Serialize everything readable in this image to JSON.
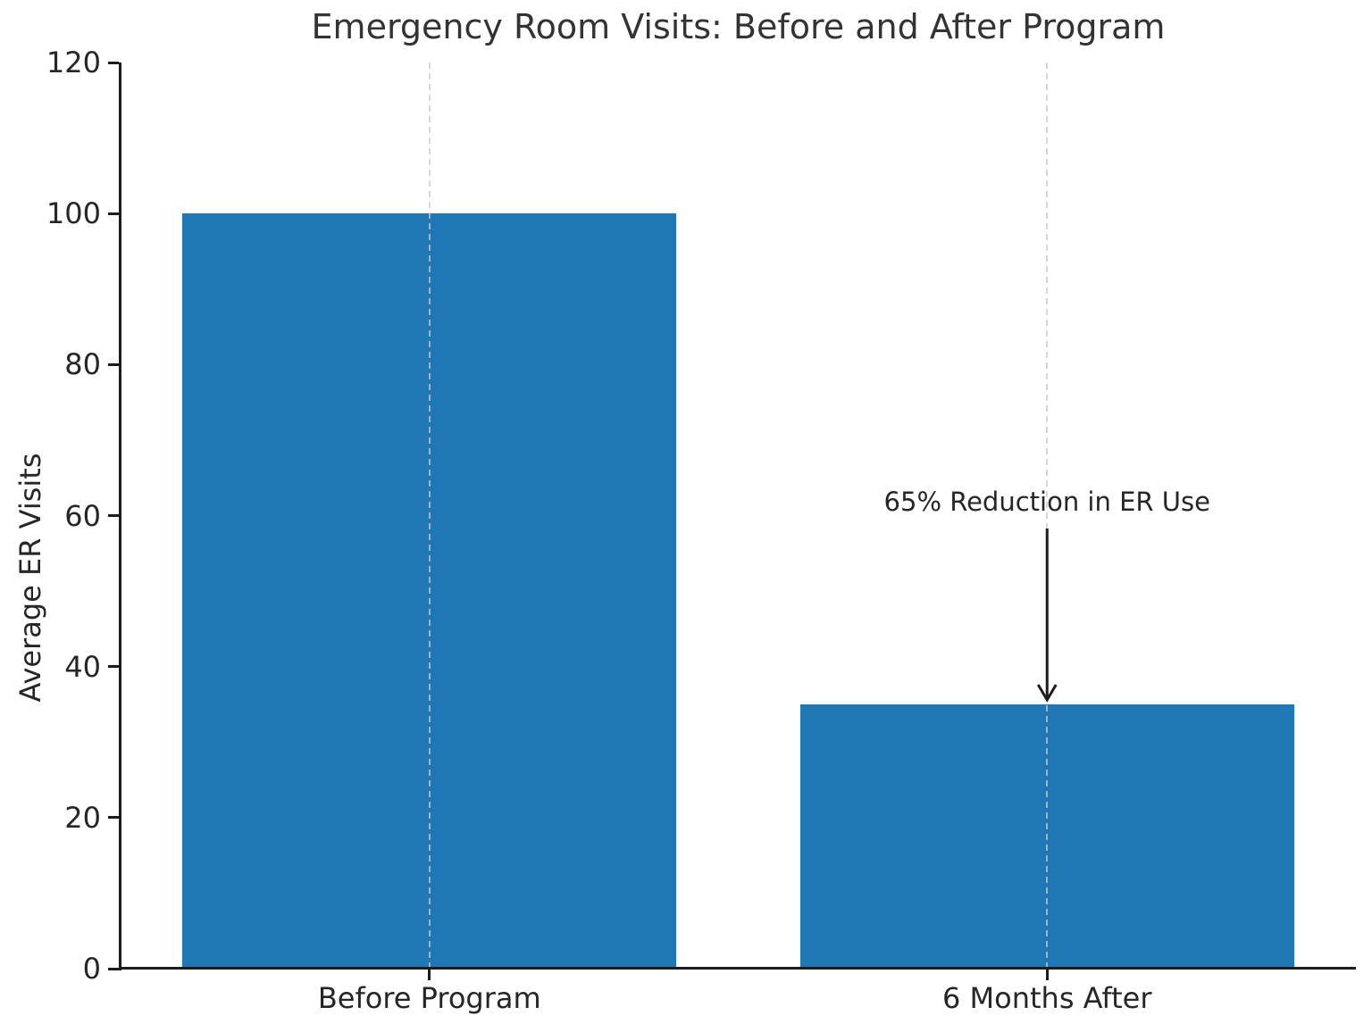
{
  "chart_data": {
    "type": "bar",
    "title": "Emergency Room Visits: Before and After Program",
    "categories": [
      "Before Program",
      "6 Months After"
    ],
    "values": [
      100,
      35
    ],
    "xlabel": "",
    "ylabel": "Average ER Visits",
    "ylim": [
      0,
      120
    ],
    "yticks": [
      0,
      20,
      40,
      60,
      80,
      100,
      120
    ],
    "bar_width_fraction": 0.8,
    "grid": "dashed vertical line at each bar center, drawn over bars",
    "legend": "none",
    "annotation": {
      "text": "65% Reduction in ER Use",
      "target_category_index": 1,
      "arrow_direction": "down"
    },
    "colors": {
      "bar": "#1f77b4",
      "text": "#262626",
      "title": "#333333",
      "axis": "#1c1c1c",
      "gridline": "#c9c9c9",
      "background": "#ffffff"
    }
  }
}
